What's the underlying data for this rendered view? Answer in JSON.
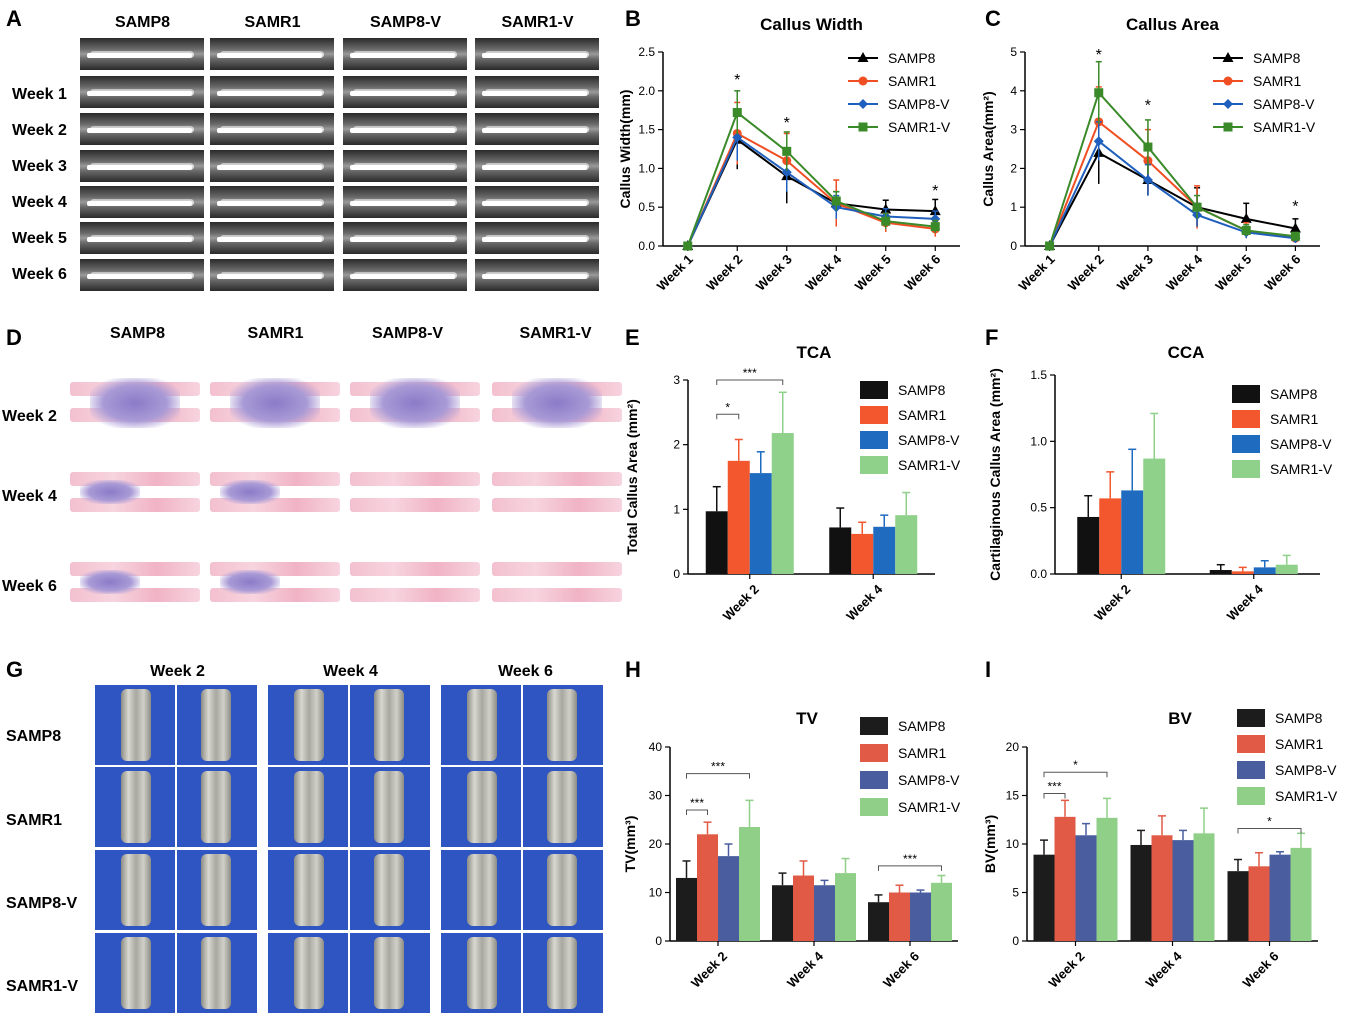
{
  "panels": {
    "A": "A",
    "B": "B",
    "C": "C",
    "D": "D",
    "E": "E",
    "F": "F",
    "G": "G",
    "H": "H",
    "I": "I"
  },
  "groups": [
    "SAMP8",
    "SAMR1",
    "SAMP8-V",
    "SAMR1-V"
  ],
  "xray_rows": [
    "Week 1",
    "Week 2",
    "Week 3",
    "Week 4",
    "Week 5",
    "Week 6"
  ],
  "histo_rows": [
    "Week 2",
    "Week 4",
    "Week 6"
  ],
  "ct_cols": [
    "Week 2",
    "Week 4",
    "Week 6"
  ],
  "colors": {
    "line": [
      "#000000",
      "#f04e23",
      "#1f5fbd",
      "#3a8a2a"
    ],
    "bar": [
      "#111111",
      "#f2572d",
      "#1f6bbf",
      "#8fd18a"
    ],
    "bar_hi": [
      "#1c1c1c",
      "#e15a45",
      "#4a5d9e",
      "#8fcf88"
    ]
  },
  "chart_data": [
    {
      "id": "B",
      "type": "line",
      "title": "Callus Width",
      "ylabel": "Callus Width(mm)",
      "categories": [
        "Week 1",
        "Week 2",
        "Week 3",
        "Week 4",
        "Week 5",
        "Week 6"
      ],
      "ylim": [
        0,
        2.5
      ],
      "yticks": [
        "0.0",
        "0.5",
        "1.0",
        "1.5",
        "2.0",
        "2.5"
      ],
      "series": [
        {
          "name": "SAMP8",
          "values": [
            0,
            1.37,
            0.9,
            0.55,
            0.47,
            0.45
          ],
          "err": [
            0,
            0.38,
            0.35,
            0.15,
            0.12,
            0.15
          ]
        },
        {
          "name": "SAMR1",
          "values": [
            0,
            1.45,
            1.1,
            0.55,
            0.3,
            0.22
          ],
          "err": [
            0,
            0.4,
            0.35,
            0.3,
            0.12,
            0.1
          ]
        },
        {
          "name": "SAMP8-V",
          "values": [
            0,
            1.4,
            0.95,
            0.5,
            0.38,
            0.35
          ],
          "err": [
            0,
            0.3,
            0.25,
            0.15,
            0.1,
            0.1
          ]
        },
        {
          "name": "SAMR1-V",
          "values": [
            0,
            1.72,
            1.22,
            0.58,
            0.32,
            0.25
          ],
          "err": [
            0,
            0.28,
            0.25,
            0.12,
            0.1,
            0.08
          ]
        }
      ],
      "stars": [
        {
          "x": 1,
          "y": 2.15
        },
        {
          "x": 2,
          "y": 1.6
        },
        {
          "x": 5,
          "y": 0.72
        }
      ],
      "star": "*"
    },
    {
      "id": "C",
      "type": "line",
      "title": "Callus Area",
      "ylabel": "Callus Area(mm²)",
      "categories": [
        "Week 1",
        "Week 2",
        "Week 3",
        "Week 4",
        "Week 5",
        "Week 6"
      ],
      "ylim": [
        0,
        5
      ],
      "yticks": [
        "0",
        "1",
        "2",
        "3",
        "4",
        "5"
      ],
      "series": [
        {
          "name": "SAMP8",
          "values": [
            0,
            2.4,
            1.7,
            1.0,
            0.7,
            0.45
          ],
          "err": [
            0,
            0.8,
            0.4,
            0.5,
            0.4,
            0.25
          ]
        },
        {
          "name": "SAMR1",
          "values": [
            0,
            3.2,
            2.2,
            1.0,
            0.4,
            0.2
          ],
          "err": [
            0,
            0.9,
            0.8,
            0.55,
            0.2,
            0.1
          ]
        },
        {
          "name": "SAMP8-V",
          "values": [
            0,
            2.7,
            1.7,
            0.8,
            0.35,
            0.2
          ],
          "err": [
            0,
            0.5,
            0.4,
            0.3,
            0.15,
            0.1
          ]
        },
        {
          "name": "SAMR1-V",
          "values": [
            0,
            3.95,
            2.55,
            1.0,
            0.4,
            0.25
          ],
          "err": [
            0,
            0.8,
            0.7,
            0.3,
            0.15,
            0.1
          ]
        }
      ],
      "stars": [
        {
          "x": 1,
          "y": 4.95
        },
        {
          "x": 2,
          "y": 3.65
        },
        {
          "x": 5,
          "y": 1.05
        }
      ],
      "star": "*"
    },
    {
      "id": "E",
      "type": "bar",
      "title": "TCA",
      "ylabel": "Total Callus Area (mm²)",
      "categories": [
        "Week 2",
        "Week 4"
      ],
      "ylim": [
        0,
        3
      ],
      "yticks": [
        "0",
        "1",
        "2",
        "3"
      ],
      "series": [
        {
          "name": "SAMP8",
          "values": [
            0.97,
            0.72
          ],
          "err": [
            0.38,
            0.3
          ]
        },
        {
          "name": "SAMR1",
          "values": [
            1.75,
            0.62
          ],
          "err": [
            0.33,
            0.18
          ]
        },
        {
          "name": "SAMP8-V",
          "values": [
            1.56,
            0.73
          ],
          "err": [
            0.33,
            0.18
          ]
        },
        {
          "name": "SAMR1-V",
          "values": [
            2.18,
            0.91
          ],
          "err": [
            0.63,
            0.35
          ]
        }
      ],
      "brackets": [
        {
          "c": 0,
          "from": 0,
          "to": 1,
          "y": 2.47,
          "label": "*"
        },
        {
          "c": 0,
          "from": 0,
          "to": 3,
          "y": 3.0,
          "label": "***"
        }
      ]
    },
    {
      "id": "F",
      "type": "bar",
      "title": "CCA",
      "ylabel": "Cartilaginous Callus Area (mm²)",
      "categories": [
        "Week 2",
        "Week 4"
      ],
      "ylim": [
        0,
        1.5
      ],
      "yticks": [
        "0.0",
        "0.5",
        "1.0",
        "1.5"
      ],
      "series": [
        {
          "name": "SAMP8",
          "values": [
            0.43,
            0.03
          ],
          "err": [
            0.16,
            0.04
          ]
        },
        {
          "name": "SAMR1",
          "values": [
            0.57,
            0.02
          ],
          "err": [
            0.2,
            0.03
          ]
        },
        {
          "name": "SAMP8-V",
          "values": [
            0.63,
            0.05
          ],
          "err": [
            0.31,
            0.05
          ]
        },
        {
          "name": "SAMR1-V",
          "values": [
            0.87,
            0.07
          ],
          "err": [
            0.34,
            0.07
          ]
        }
      ],
      "brackets": []
    },
    {
      "id": "H",
      "type": "bar",
      "title": "TV",
      "ylabel": "TV(mm³)",
      "categories": [
        "Week 2",
        "Week 4",
        "Week 6"
      ],
      "ylim": [
        0,
        40
      ],
      "yticks": [
        "0",
        "10",
        "20",
        "30",
        "40"
      ],
      "series": [
        {
          "name": "SAMP8",
          "values": [
            13,
            11.5,
            8
          ],
          "err": [
            3.5,
            2.5,
            1.5
          ]
        },
        {
          "name": "SAMR1",
          "values": [
            22,
            13.5,
            10
          ],
          "err": [
            2.5,
            3,
            1.5
          ]
        },
        {
          "name": "SAMP8-V",
          "values": [
            17.5,
            11.5,
            10
          ],
          "err": [
            2.5,
            1,
            0.5
          ]
        },
        {
          "name": "SAMR1-V",
          "values": [
            23.5,
            14,
            12
          ],
          "err": [
            5.5,
            3,
            1.5
          ]
        }
      ],
      "brackets": [
        {
          "c": 0,
          "from": 0,
          "to": 1,
          "y": 27,
          "label": "***"
        },
        {
          "c": 0,
          "from": 0,
          "to": 3,
          "y": 34.5,
          "label": "***"
        },
        {
          "c": 2,
          "from": 0,
          "to": 3,
          "y": 15.5,
          "label": "***"
        }
      ]
    },
    {
      "id": "I",
      "type": "bar",
      "title": "BV",
      "ylabel": "BV(mm³)",
      "categories": [
        "Week 2",
        "Week 4",
        "Week 6"
      ],
      "ylim": [
        0,
        20
      ],
      "yticks": [
        "0",
        "5",
        "10",
        "15",
        "20"
      ],
      "series": [
        {
          "name": "SAMP8",
          "values": [
            8.9,
            9.9,
            7.2
          ],
          "err": [
            1.5,
            1.5,
            1.2
          ]
        },
        {
          "name": "SAMR1",
          "values": [
            12.8,
            10.9,
            7.7
          ],
          "err": [
            1.7,
            2,
            1.4
          ]
        },
        {
          "name": "SAMP8-V",
          "values": [
            10.9,
            10.4,
            8.9
          ],
          "err": [
            1.2,
            1,
            0.3
          ]
        },
        {
          "name": "SAMR1-V",
          "values": [
            12.7,
            11.1,
            9.6
          ],
          "err": [
            2,
            2.6,
            1.5
          ]
        }
      ],
      "brackets": [
        {
          "c": 0,
          "from": 0,
          "to": 1,
          "y": 15.2,
          "label": "***"
        },
        {
          "c": 0,
          "from": 0,
          "to": 3,
          "y": 17.4,
          "label": "*"
        },
        {
          "c": 2,
          "from": 0,
          "to": 3,
          "y": 11.6,
          "label": "*"
        }
      ]
    }
  ]
}
